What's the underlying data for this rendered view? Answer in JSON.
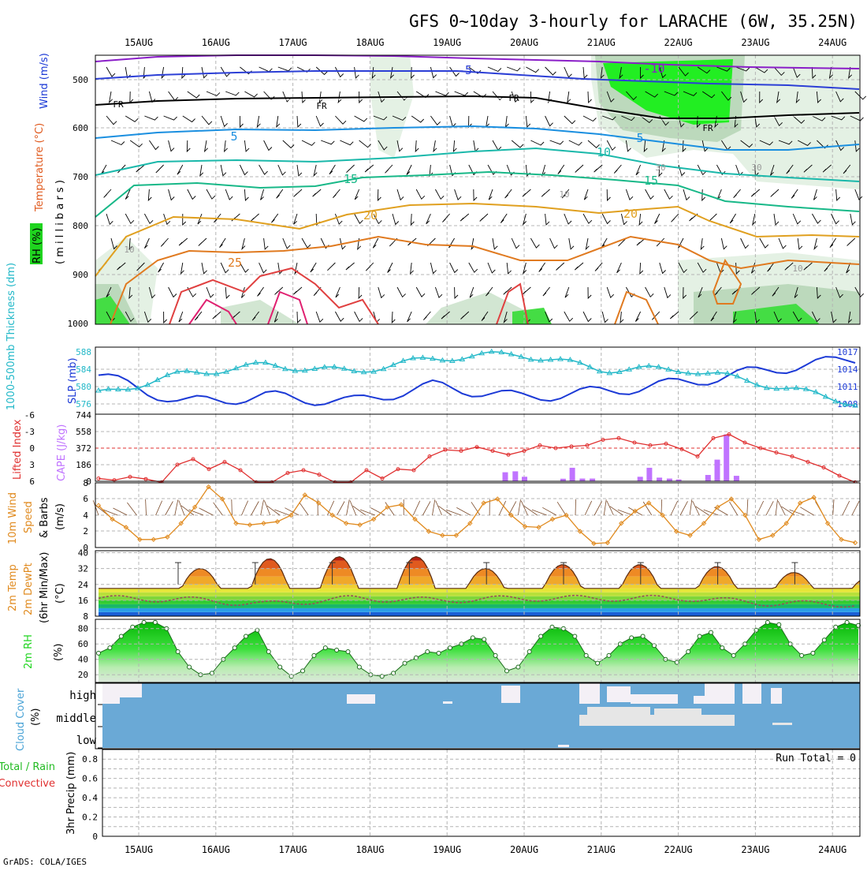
{
  "title": "GFS 0~10day 3-hourly for LARACHE (6W, 35.25N)",
  "credit": "GrADS: COLA/IGES",
  "dates": [
    "15AUG",
    "16AUG",
    "17AUG",
    "18AUG",
    "19AUG",
    "20AUG",
    "21AUG",
    "22AUG",
    "23AUG",
    "24AUG"
  ],
  "colors": {
    "temp_labels": "#e05a1e",
    "wind_label": "#1c3ad6",
    "rh_box": "#1fd41f",
    "slp_line": "#1c3ad6",
    "thickness_line": "#22b8c8",
    "lifted_index": "#e03030",
    "cape_bar": "#c073ff",
    "wind10m": "#e08a1e",
    "rh2m": "#1fd41f",
    "cloud": "#6aa9d6",
    "precip_green": "#22bb22",
    "precip_red": "#e03030"
  },
  "panels": {
    "upper": {
      "label_rh": "RH (%)",
      "label_temp": "Temperature (°C)",
      "label_wind": "Wind (m/s)",
      "label_mb": "( m i l l i b a r s )",
      "y_ticks": [
        "500",
        "600",
        "700",
        "800",
        "900",
        "1000"
      ]
    },
    "slp": {
      "label_thickness": "1000-500mb Thickness (dm)",
      "label_slp": "SLP (mb)",
      "left_ticks": [
        "588",
        "584",
        "580",
        "576"
      ],
      "right_ticks": [
        "1017",
        "1014",
        "1011",
        "1008"
      ]
    },
    "cape": {
      "label_li": "Lifted Index",
      "label_cape": "CAPE (J/kg)",
      "left_ticks": [
        "-6",
        "-3",
        "0",
        "3",
        "6"
      ],
      "right_ticks": [
        "744",
        "558",
        "372",
        "186",
        "0"
      ]
    },
    "wind10m": {
      "label1": "10m Wind",
      "label2": "Speed",
      "label3": "& Barbs",
      "label4": "(m/s)",
      "y_ticks": [
        "8",
        "6",
        "4",
        "2",
        "0"
      ]
    },
    "temp2m": {
      "label1": "2m Temp",
      "label2": "2m DewPt",
      "label3": "(6hr Min/Max)",
      "label4": "(°C)",
      "y_ticks": [
        "40",
        "32",
        "24",
        "16",
        "8"
      ]
    },
    "rh2m": {
      "label1": "2m RH",
      "label2": "(%)",
      "y_ticks": [
        "80",
        "60",
        "40",
        "20"
      ]
    },
    "cloud": {
      "label1": "Cloud Cover",
      "label2": "(%)",
      "levels": [
        "high",
        "middle",
        "low"
      ]
    },
    "precip": {
      "label1": "Total / Rain",
      "label2": "Convective",
      "label3": "3hr Precip (mm)",
      "run_total": "Run Total = 0",
      "y_ticks": [
        "0.8",
        "0.6",
        "0.4",
        "0.2",
        "0"
      ]
    }
  },
  "chart_data": [
    {
      "type": "line",
      "title": "1000-500mb Thickness (dm) / SLP (mb)",
      "x": [
        "15AUG",
        "16AUG",
        "17AUG",
        "18AUG",
        "19AUG",
        "20AUG",
        "21AUG",
        "22AUG",
        "23AUG",
        "24AUG"
      ],
      "series": [
        {
          "name": "SLP (mb)",
          "values": [
            1013.2,
            1008.5,
            1009.6,
            1008.6,
            1011.4,
            1009.4,
            1010.4,
            1012.0,
            1014.2,
            1016.0
          ]
        },
        {
          "name": "1000-500mb Thickness (dm)",
          "values": [
            578.5,
            583.0,
            585.0,
            583.5,
            586.5,
            587.5,
            584.0,
            584.0,
            580.5,
            576.5
          ]
        }
      ],
      "ylim_left": [
        574,
        589
      ],
      "ylim_right": [
        1006.5,
        1018
      ]
    },
    {
      "type": "bar",
      "title": "CAPE (J/kg) / Lifted Index",
      "x": [
        "19.75",
        "19.88",
        "20.0",
        "20.5",
        "20.62",
        "20.75",
        "20.88",
        "21.5",
        "21.62",
        "21.75",
        "21.88",
        "22.0",
        "22.38",
        "22.5",
        "22.62",
        "22.75"
      ],
      "series": [
        {
          "name": "CAPE (J/kg)",
          "values": [
            100,
            110,
            50,
            28,
            150,
            30,
            30,
            50,
            150,
            40,
            30,
            20,
            70,
            240,
            520,
            60
          ]
        },
        {
          "name": "Lifted Index",
          "values": [
            1.5,
            1.2,
            1.5,
            0.5,
            0.3,
            0.0,
            1.5,
            -1.2,
            -1.5,
            -0.5,
            -0.3,
            -0.2,
            -1.3,
            -1.8,
            -2.5,
            -1.0
          ]
        }
      ],
      "ylim_right": [
        0,
        744
      ],
      "ylim_left": [
        -6,
        6
      ]
    },
    {
      "type": "line",
      "title": "10m Wind Speed (m/s)",
      "x": [
        "15AUG",
        "16AUG",
        "17AUG",
        "18AUG",
        "19AUG",
        "20AUG",
        "21AUG",
        "22AUG",
        "23AUG",
        "24AUG"
      ],
      "series": [
        {
          "name": "Speed",
          "values": [
            0.8,
            3.5,
            2.6,
            2.8,
            5.1,
            2.5,
            1.5,
            0.5,
            3.0,
            0.8
          ]
        }
      ],
      "ylim": [
        0,
        8
      ]
    },
    {
      "type": "area",
      "title": "2m Temp / 2m DewPt (°C)",
      "x": [
        "15AUG",
        "16AUG",
        "17AUG",
        "18AUG",
        "19AUG",
        "20AUG",
        "21AUG",
        "22AUG",
        "23AUG",
        "24AUG"
      ],
      "series": [
        {
          "name": "2m Temp",
          "values": [
            22,
            20.5,
            21.5,
            22,
            21.5,
            22,
            21.5,
            21.5,
            20,
            19
          ]
        },
        {
          "name": "2m DewPt",
          "values": [
            17,
            16.5,
            14,
            17,
            16,
            17,
            17,
            17,
            14.5,
            14
          ]
        }
      ],
      "ylim": [
        8,
        41
      ]
    },
    {
      "type": "area",
      "title": "2m RH (%)",
      "x": [
        "15AUG",
        "16AUG",
        "17AUG",
        "18AUG",
        "19AUG",
        "20AUG",
        "21AUG",
        "22AUG",
        "23AUG",
        "24AUG"
      ],
      "series": [
        {
          "name": "2m RH",
          "values": [
            88,
            22,
            55,
            42,
            65,
            78,
            35,
            70,
            85,
            88
          ]
        }
      ],
      "ylim": [
        10,
        92
      ]
    },
    {
      "type": "bar",
      "title": "3hr Precip (mm)",
      "x": [
        "15AUG",
        "16AUG",
        "17AUG",
        "18AUG",
        "19AUG",
        "20AUG",
        "21AUG",
        "22AUG",
        "23AUG",
        "24AUG"
      ],
      "series": [
        {
          "name": "Total / Rain",
          "values": [
            0,
            0,
            0,
            0,
            0,
            0,
            0,
            0,
            0,
            0
          ]
        }
      ],
      "ylim": [
        0,
        0.9
      ]
    }
  ]
}
